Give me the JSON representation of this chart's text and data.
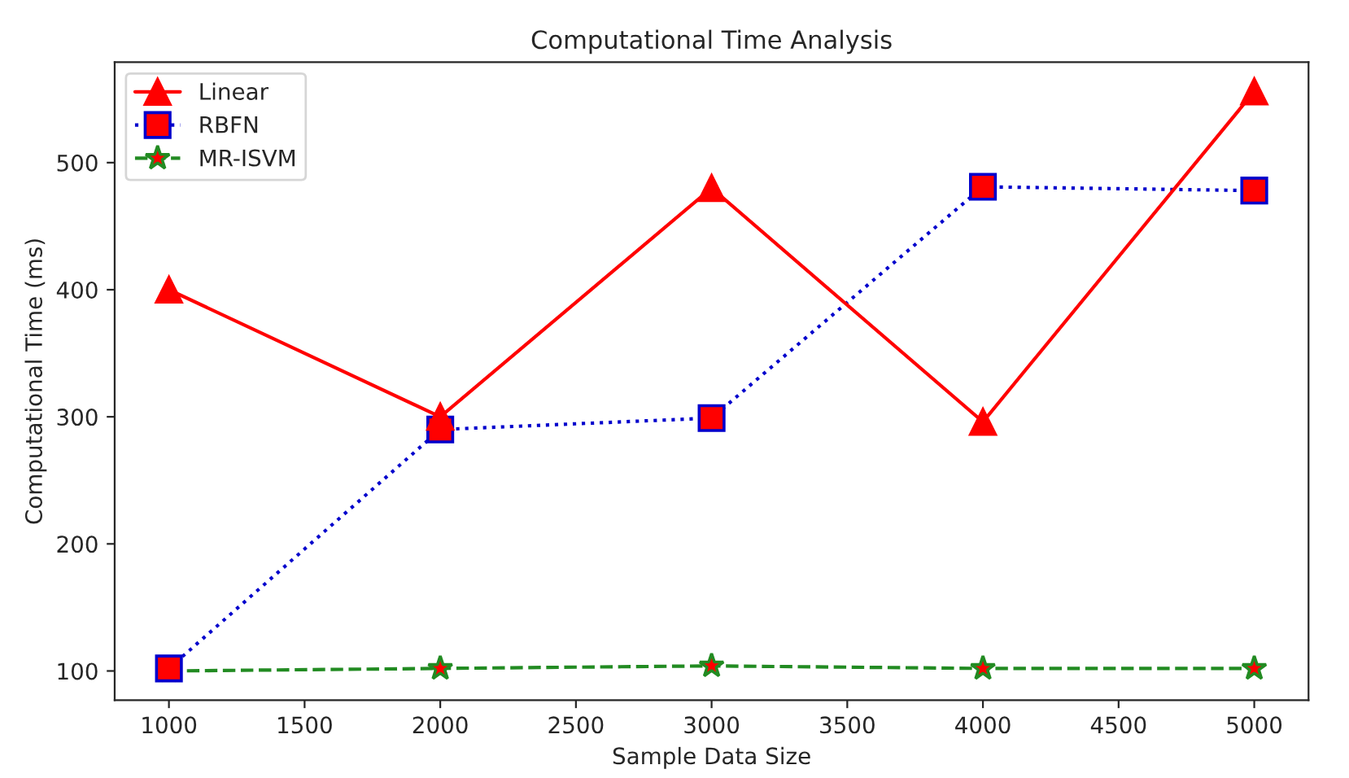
{
  "chart_data": {
    "type": "line",
    "title": "Computational Time Analysis",
    "xlabel": "Sample Data Size",
    "ylabel": "Computational Time (ms)",
    "x": [
      1000,
      2000,
      3000,
      4000,
      5000
    ],
    "series": [
      {
        "name": "Linear",
        "color": "#ff0000",
        "values": [
          400,
          300,
          480,
          296,
          556
        ],
        "marker": "triangle",
        "line_style": "solid"
      },
      {
        "name": "RBFN",
        "color": "#0000cc",
        "values": [
          102,
          290,
          299,
          481,
          478
        ],
        "marker": "square",
        "line_style": "dotted"
      },
      {
        "name": "MR-ISVM",
        "color": "#228b22",
        "values": [
          100,
          102,
          104,
          102,
          102
        ],
        "marker": "star",
        "line_style": "dashed"
      }
    ],
    "xlim": [
      800,
      5200
    ],
    "xticks": [
      1000,
      1500,
      2000,
      2500,
      3000,
      3500,
      4000,
      4500,
      5000
    ],
    "ylim": [
      77,
      579
    ],
    "yticks": [
      100,
      200,
      300,
      400,
      500
    ],
    "grid": false,
    "legend": "top left"
  }
}
